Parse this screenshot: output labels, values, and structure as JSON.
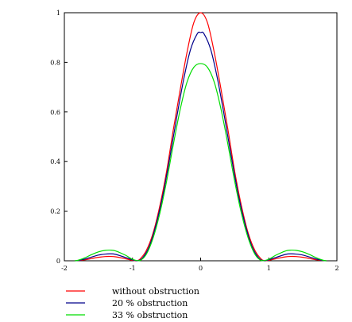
{
  "chart_data": {
    "type": "line",
    "title": "",
    "xlabel": "",
    "ylabel": "",
    "xlim": [
      -2,
      2
    ],
    "ylim": [
      0,
      1
    ],
    "grid": false,
    "legend": "bottom-left",
    "x_ticks": [
      "-2",
      "-1",
      "0",
      "1",
      "2"
    ],
    "y_ticks": [
      "0",
      "0.2",
      "0.4",
      "0.6",
      "0.8",
      "1"
    ],
    "series": [
      {
        "name": "without obstruction",
        "color": "#ff0000",
        "x": [
          -1.85,
          -1.8,
          -1.7,
          -1.6,
          -1.5,
          -1.4,
          -1.33,
          -1.25,
          -1.1,
          -1.0,
          -0.95,
          -0.9,
          -0.8,
          -0.7,
          -0.6,
          -0.5,
          -0.4,
          -0.3,
          -0.2,
          -0.1,
          0.0,
          0.1,
          0.2,
          0.3,
          0.4,
          0.5,
          0.6,
          0.7,
          0.8,
          0.9,
          0.95,
          1.0,
          1.1,
          1.25,
          1.33,
          1.4,
          1.5,
          1.6,
          1.7,
          1.8,
          1.85
        ],
        "y": [
          0.0,
          0.001,
          0.004,
          0.009,
          0.014,
          0.017,
          0.0175,
          0.016,
          0.008,
          0.002,
          0.0,
          0.004,
          0.04,
          0.11,
          0.22,
          0.36,
          0.53,
          0.69,
          0.84,
          0.96,
          1.0,
          0.96,
          0.84,
          0.69,
          0.53,
          0.36,
          0.22,
          0.11,
          0.04,
          0.004,
          0.0,
          0.002,
          0.008,
          0.016,
          0.0175,
          0.017,
          0.014,
          0.009,
          0.004,
          0.001,
          0.0
        ]
      },
      {
        "name": "20 % obstruction",
        "color": "#00008b",
        "x": [
          -1.85,
          -1.8,
          -1.7,
          -1.6,
          -1.5,
          -1.4,
          -1.33,
          -1.25,
          -1.1,
          -1.0,
          -0.93,
          -0.85,
          -0.75,
          -0.65,
          -0.55,
          -0.45,
          -0.35,
          -0.25,
          -0.15,
          -0.05,
          0.0,
          0.05,
          0.15,
          0.25,
          0.35,
          0.45,
          0.55,
          0.65,
          0.75,
          0.85,
          0.93,
          1.0,
          1.1,
          1.25,
          1.33,
          1.4,
          1.5,
          1.6,
          1.7,
          1.8,
          1.85
        ],
        "y": [
          0.0,
          0.001,
          0.007,
          0.015,
          0.023,
          0.027,
          0.028,
          0.026,
          0.013,
          0.004,
          0.0,
          0.012,
          0.06,
          0.15,
          0.27,
          0.42,
          0.58,
          0.73,
          0.85,
          0.915,
          0.92,
          0.915,
          0.85,
          0.73,
          0.58,
          0.42,
          0.27,
          0.15,
          0.06,
          0.012,
          0.0,
          0.004,
          0.013,
          0.026,
          0.028,
          0.027,
          0.023,
          0.015,
          0.007,
          0.001,
          0.0
        ]
      },
      {
        "name": "33 % obstruction",
        "color": "#00dd00",
        "x": [
          -1.85,
          -1.8,
          -1.7,
          -1.6,
          -1.5,
          -1.4,
          -1.33,
          -1.25,
          -1.1,
          -1.0,
          -0.9,
          -0.8,
          -0.7,
          -0.6,
          -0.5,
          -0.4,
          -0.3,
          -0.2,
          -0.1,
          0.0,
          0.1,
          0.2,
          0.3,
          0.4,
          0.5,
          0.6,
          0.7,
          0.8,
          0.9,
          1.0,
          1.1,
          1.25,
          1.33,
          1.4,
          1.5,
          1.6,
          1.7,
          1.8,
          1.85
        ],
        "y": [
          0.0,
          0.002,
          0.012,
          0.025,
          0.036,
          0.042,
          0.043,
          0.04,
          0.022,
          0.006,
          0.0,
          0.025,
          0.09,
          0.19,
          0.32,
          0.47,
          0.61,
          0.72,
          0.78,
          0.795,
          0.78,
          0.72,
          0.61,
          0.47,
          0.32,
          0.19,
          0.09,
          0.025,
          0.0,
          0.006,
          0.022,
          0.04,
          0.043,
          0.042,
          0.036,
          0.025,
          0.012,
          0.002,
          0.0
        ]
      }
    ]
  }
}
